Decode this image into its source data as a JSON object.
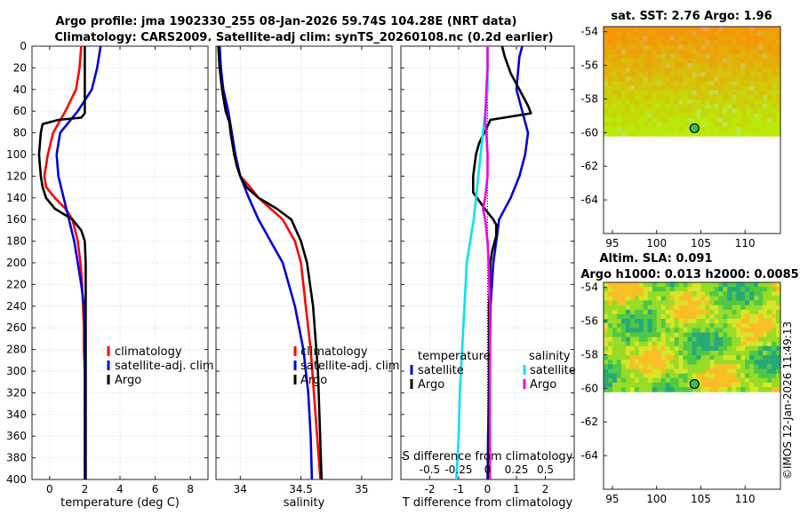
{
  "title": {
    "line1": "Argo profile: jma 1902330_255 08-Jan-2026 59.74S 104.28E (NRT data)",
    "line2": "Climatology: CARS2009. Satellite-adj clim: synTS_20260108.nc (0.2d earlier)"
  },
  "colors": {
    "climatology": "#ff0000",
    "satellite": "#0000dd",
    "argo": "#000000",
    "sal_sat": "#00e5ee",
    "sal_argo": "#ee00ee"
  },
  "depth_axis": {
    "ylim": [
      0,
      400
    ],
    "ticks": [
      0,
      20,
      40,
      60,
      80,
      100,
      120,
      140,
      160,
      180,
      200,
      220,
      240,
      260,
      280,
      300,
      320,
      340,
      360,
      380,
      400
    ]
  },
  "chart_data": [
    {
      "type": "line",
      "title": "temperature profile",
      "xlabel": "temperature (deg C)",
      "xlim": [
        -1,
        9
      ],
      "xticks": [
        0,
        2,
        4,
        6,
        8
      ],
      "legend": [
        "climatology",
        "satellite-adj. clim",
        "Argo"
      ],
      "series": [
        {
          "name": "climatology",
          "color": "#ff0000",
          "x": [
            1.8,
            1.7,
            1.5,
            0.9,
            0.2,
            -0.1,
            -0.3,
            -0.2,
            0.3,
            0.9,
            1.3,
            1.6,
            1.75,
            1.85,
            1.9,
            1.95,
            1.95,
            2.0,
            2.0,
            2.0,
            2.0
          ],
          "y": [
            0,
            20,
            40,
            60,
            80,
            100,
            120,
            130,
            140,
            150,
            160,
            180,
            200,
            220,
            240,
            260,
            280,
            300,
            340,
            380,
            400
          ]
        },
        {
          "name": "satellite-adj. clim",
          "color": "#0000dd",
          "x": [
            2.9,
            2.7,
            2.4,
            1.6,
            0.6,
            0.4,
            0.5,
            0.8,
            1.1,
            1.4,
            1.6,
            1.8,
            1.95,
            2.0,
            2.0,
            2.0,
            2.0
          ],
          "y": [
            0,
            20,
            40,
            60,
            80,
            100,
            120,
            140,
            160,
            180,
            200,
            220,
            240,
            260,
            300,
            360,
            400
          ]
        },
        {
          "name": "Argo",
          "color": "#000000",
          "x": [
            2.0,
            2.0,
            2.0,
            2.0,
            2.0,
            1.8,
            0.5,
            -0.4,
            -0.5,
            -0.6,
            -0.5,
            -0.4,
            -0.2,
            0.3,
            1.3,
            1.8,
            2.0,
            2.05,
            2.05,
            2.05,
            2.05,
            2.05
          ],
          "y": [
            0,
            20,
            40,
            55,
            62,
            66,
            68,
            72,
            80,
            100,
            120,
            130,
            140,
            150,
            160,
            170,
            180,
            200,
            240,
            300,
            360,
            400
          ]
        }
      ]
    },
    {
      "type": "line",
      "title": "salinity profile",
      "xlabel": "salinity",
      "xlim": [
        33.8,
        35.25
      ],
      "xticks": [
        34,
        34.5,
        35
      ],
      "legend": [
        "climatology",
        "satellite-adj. clim",
        "Argo"
      ],
      "series": [
        {
          "name": "climatology",
          "color": "#ff0000",
          "x": [
            33.82,
            33.83,
            33.86,
            33.9,
            33.93,
            33.95,
            34.0,
            34.08,
            34.15,
            34.25,
            34.35,
            34.45,
            34.5,
            34.54,
            34.58,
            34.62,
            34.66
          ],
          "y": [
            0,
            20,
            40,
            60,
            80,
            100,
            120,
            130,
            140,
            150,
            160,
            180,
            200,
            240,
            280,
            340,
            400
          ]
        },
        {
          "name": "satellite-adj. clim",
          "color": "#0000dd",
          "x": [
            33.83,
            33.84,
            33.86,
            33.9,
            33.93,
            33.96,
            34.0,
            34.07,
            34.15,
            34.25,
            34.35,
            34.45,
            34.52,
            34.56,
            34.58,
            34.59
          ],
          "y": [
            0,
            20,
            40,
            60,
            80,
            100,
            120,
            140,
            160,
            180,
            200,
            240,
            280,
            320,
            360,
            400
          ]
        },
        {
          "name": "Argo",
          "color": "#000000",
          "x": [
            33.82,
            33.83,
            33.85,
            33.88,
            33.91,
            33.92,
            33.95,
            33.97,
            34.0,
            34.05,
            34.15,
            34.3,
            34.42,
            34.5,
            34.55,
            34.6,
            34.64,
            34.67
          ],
          "y": [
            0,
            20,
            40,
            60,
            70,
            80,
            100,
            110,
            120,
            130,
            140,
            150,
            160,
            180,
            200,
            240,
            300,
            400
          ]
        }
      ]
    },
    {
      "type": "line",
      "title": "difference from climatology",
      "xlabel": "T difference from climatology",
      "xlabel_top": "S difference from climatology",
      "xlim_T": [
        -3,
        3
      ],
      "xticks_T": [
        -2,
        -1,
        0,
        1,
        2
      ],
      "xlim_S": [
        -0.75,
        0.75
      ],
      "xticks_S": [
        "-0.5",
        "-0.25",
        "0",
        "0.25",
        "0.5"
      ],
      "legend": {
        "temperature": [
          "satellite",
          "Argo"
        ],
        "salinity": [
          "satellite",
          "Argo"
        ]
      },
      "legend_headers": [
        "temperature",
        "salinity"
      ],
      "legend_labels": [
        "satellite",
        "Argo",
        "satellite",
        "Argo"
      ],
      "series": [
        {
          "name": "temperature satellite",
          "color": "#0000dd",
          "axis": "T",
          "x": [
            1.2,
            1.1,
            1.0,
            1.2,
            1.4,
            1.3,
            1.1,
            0.8,
            0.4,
            0.3,
            0.2,
            0.1,
            0.08,
            0.05,
            0.02,
            0.0
          ],
          "y": [
            0,
            10,
            40,
            60,
            80,
            100,
            120,
            140,
            160,
            180,
            200,
            240,
            280,
            320,
            360,
            400
          ]
        },
        {
          "name": "temperature Argo",
          "color": "#000000",
          "axis": "T",
          "x": [
            0.5,
            0.6,
            0.8,
            1.1,
            1.4,
            1.5,
            0.1,
            -0.3,
            -0.4,
            -0.5,
            -0.5,
            -0.1,
            0.2,
            0.3,
            0.3,
            0.15,
            0.1,
            0.05,
            0.05,
            0.05,
            0.05
          ],
          "y": [
            0,
            10,
            25,
            40,
            55,
            62,
            68,
            90,
            100,
            120,
            135,
            150,
            160,
            165,
            175,
            190,
            200,
            240,
            300,
            360,
            400
          ]
        },
        {
          "name": "salinity satellite",
          "color": "#00e5ee",
          "axis": "S",
          "x": [
            0.0,
            0.0,
            0.0,
            -0.02,
            -0.04,
            -0.06,
            -0.08,
            -0.1,
            -0.12,
            -0.15,
            -0.18,
            -0.2,
            -0.22,
            -0.24,
            -0.25,
            -0.27
          ],
          "y": [
            0,
            20,
            40,
            60,
            80,
            100,
            120,
            140,
            160,
            180,
            200,
            240,
            280,
            320,
            360,
            400
          ]
        },
        {
          "name": "salinity Argo",
          "color": "#ee00ee",
          "axis": "S",
          "x": [
            0.0,
            0.0,
            -0.01,
            -0.02,
            -0.01,
            0.0,
            0.0,
            -0.02,
            -0.04,
            -0.02,
            0.0,
            0.01,
            0.02,
            0.02,
            0.02,
            0.02
          ],
          "y": [
            0,
            20,
            40,
            70,
            80,
            100,
            120,
            140,
            150,
            160,
            180,
            200,
            240,
            300,
            360,
            400
          ]
        }
      ]
    },
    {
      "type": "heatmap",
      "title": "sat. SST: 2.76 Argo: 1.96",
      "xlim": [
        94,
        114
      ],
      "ylim": [
        -66,
        -53.7
      ],
      "xticks": [
        95,
        100,
        105,
        110
      ],
      "yticks": [
        -54,
        -56,
        -58,
        -60,
        -62,
        -64
      ],
      "data_extent_lat": [
        -53.7,
        -60.2
      ],
      "argo_position": {
        "lon": 104.28,
        "lat": -59.74
      }
    },
    {
      "type": "heatmap",
      "title": "Altim. SLA: 0.091",
      "subtitle": "Argo h1000: 0.013 h2000: 0.0085",
      "xlim": [
        94,
        114
      ],
      "ylim": [
        -66,
        -53.7
      ],
      "xticks": [
        95,
        100,
        105,
        110
      ],
      "yticks": [
        -54,
        -56,
        -58,
        -60,
        -62,
        -64
      ],
      "data_extent_lat": [
        -53.7,
        -60.2
      ],
      "argo_position": {
        "lon": 104.28,
        "lat": -59.74
      }
    }
  ],
  "credit": "©IMOS 12-Jan-2026 11:49:13"
}
